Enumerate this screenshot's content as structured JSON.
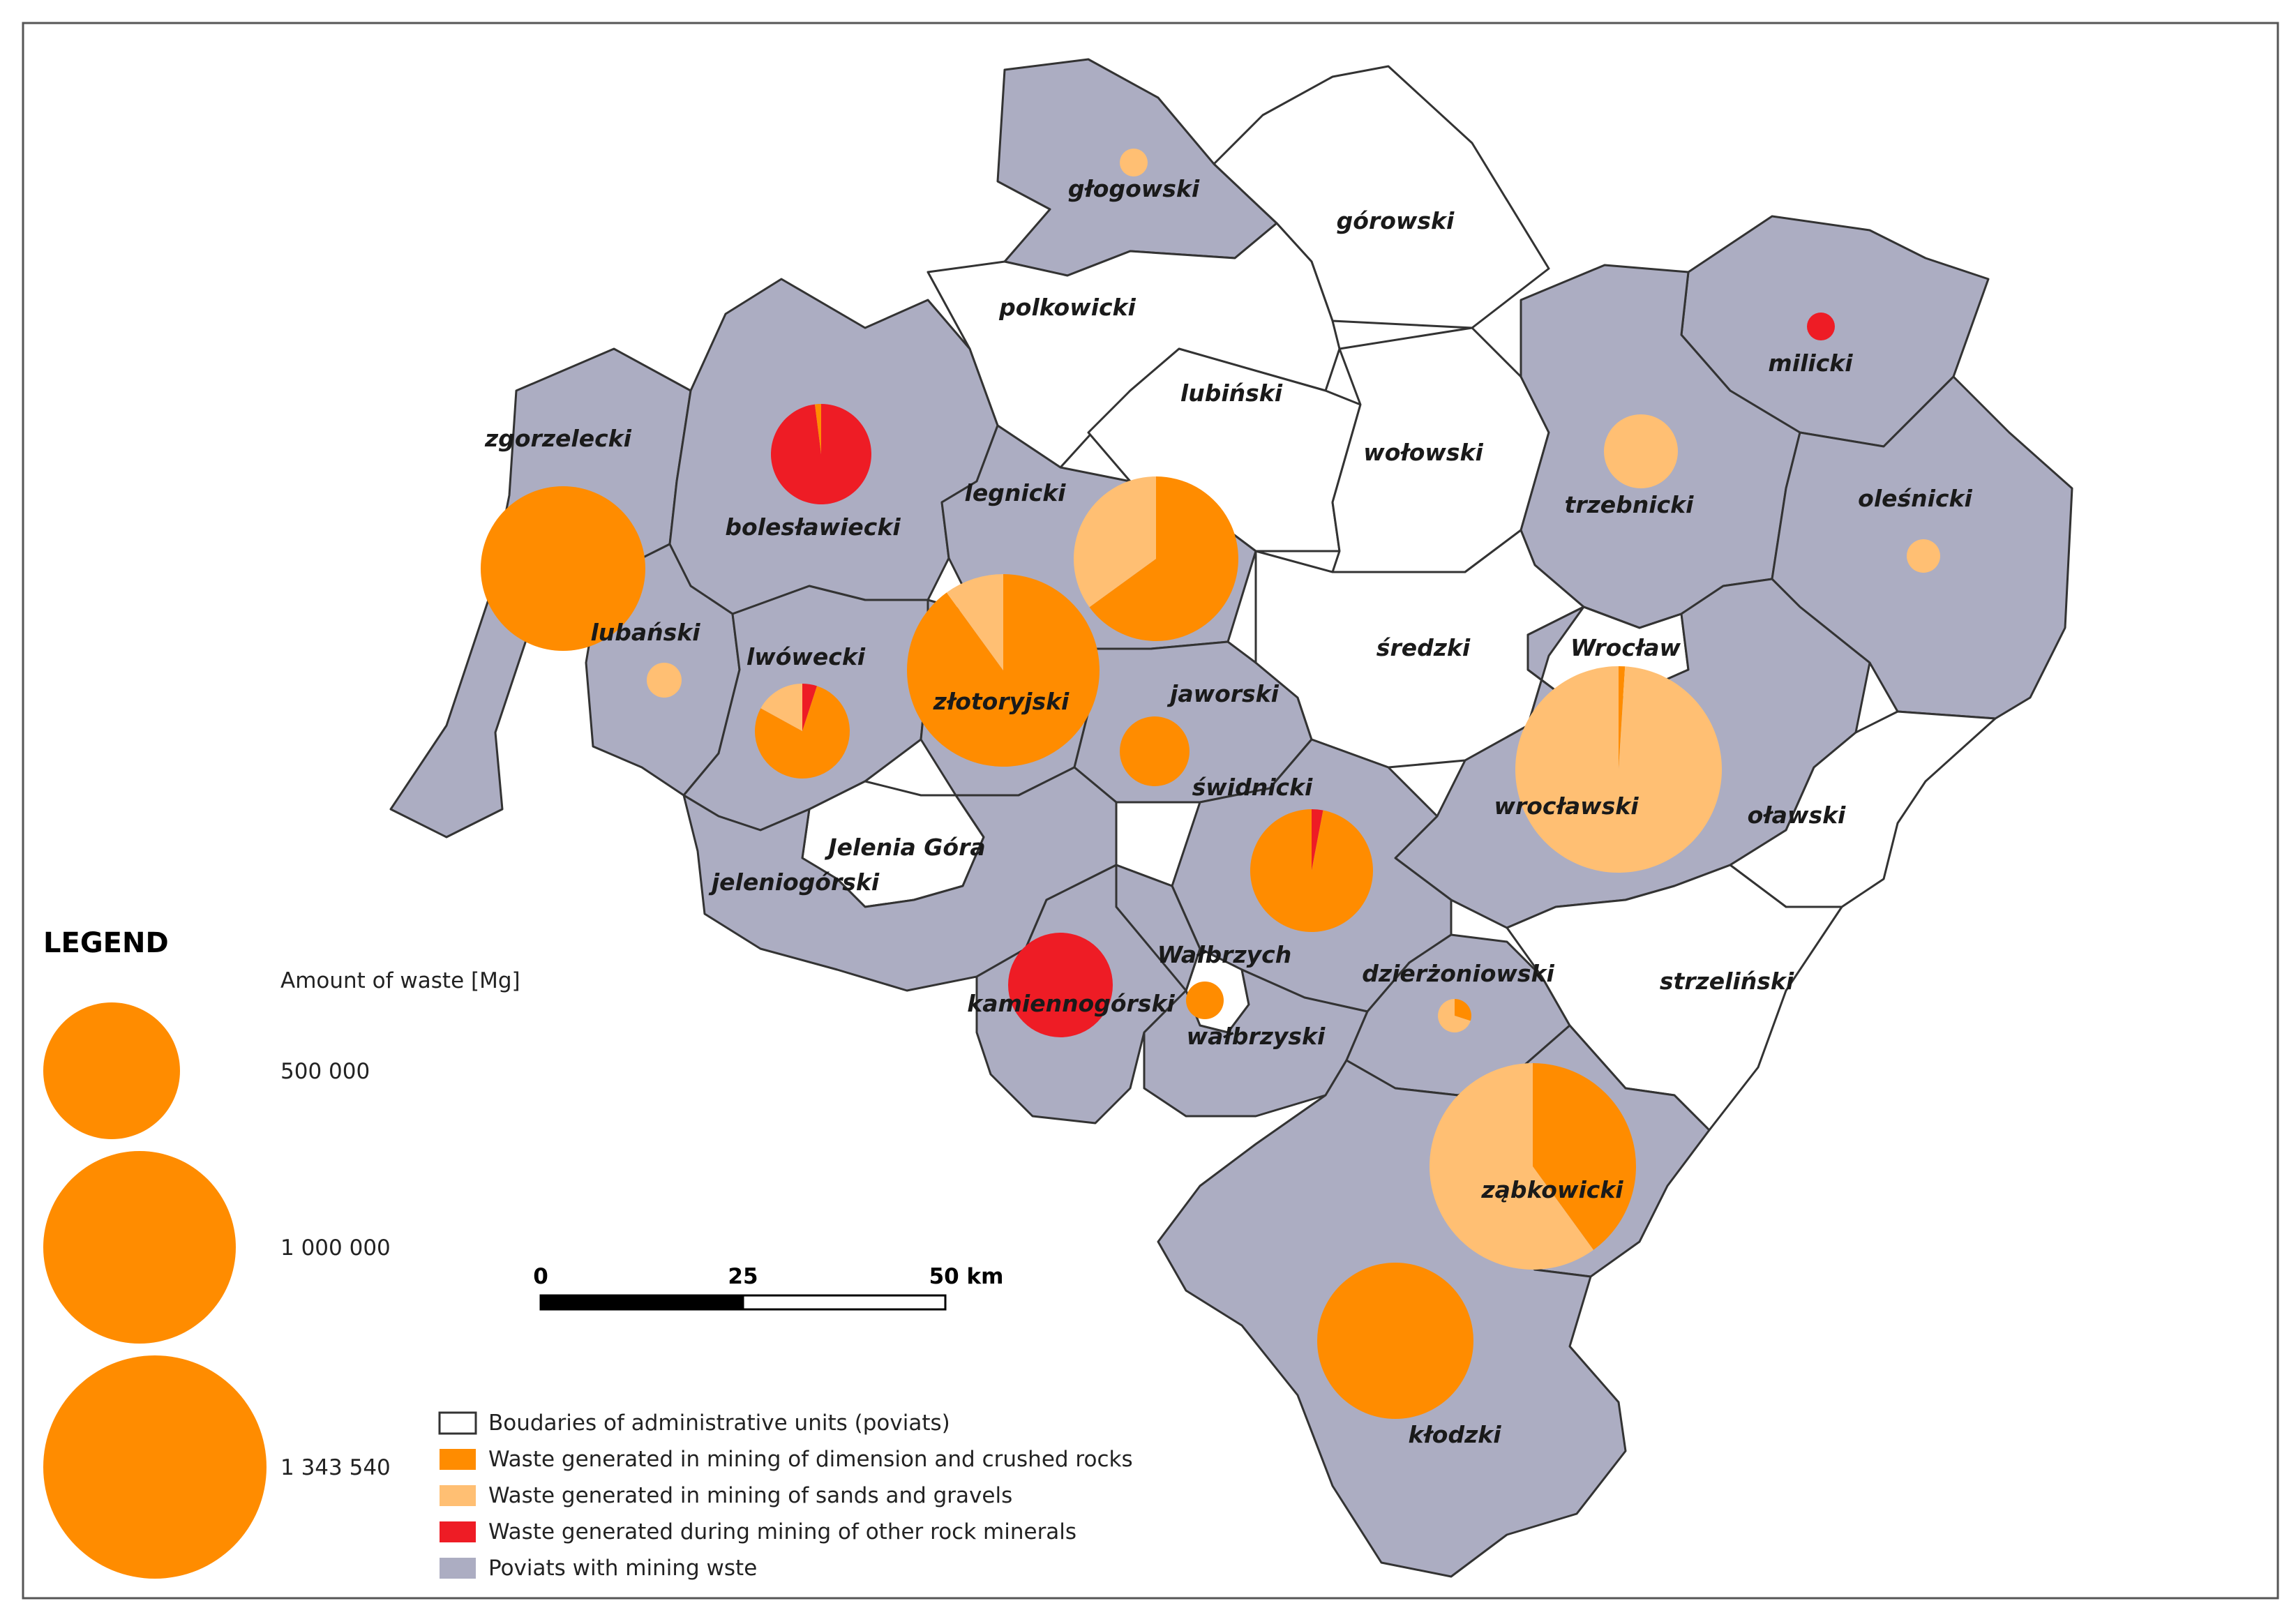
{
  "colors": {
    "crushed_rocks": "#FF8C00",
    "sands_gravels": "#FFBF73",
    "other_minerals": "#EE1C25",
    "mining_poviat": "#ACADC2",
    "boundary": "#333333"
  },
  "poviats": [
    {
      "label": "głogowski",
      "mining": true
    },
    {
      "label": "górowski",
      "mining": false
    },
    {
      "label": "polkowicki",
      "mining": false
    },
    {
      "label": "lubiński",
      "mining": false
    },
    {
      "label": "wołowski",
      "mining": false
    },
    {
      "label": "milicki",
      "mining": true
    },
    {
      "label": "trzebnicki",
      "mining": true
    },
    {
      "label": "oleśnicki",
      "mining": true
    },
    {
      "label": "zgorzelecki",
      "mining": true
    },
    {
      "label": "bolesławiecki",
      "mining": true
    },
    {
      "label": "legnicki",
      "mining": true
    },
    {
      "label": "lubański",
      "mining": true
    },
    {
      "label": "lwówecki",
      "mining": true
    },
    {
      "label": "złotoryjski",
      "mining": true
    },
    {
      "label": "jaworski",
      "mining": true
    },
    {
      "label": "średzki",
      "mining": false
    },
    {
      "label": "Wrocław",
      "mining": false
    },
    {
      "label": "wrocławski",
      "mining": true
    },
    {
      "label": "oławski",
      "mining": false
    },
    {
      "label": "świdnicki",
      "mining": true
    },
    {
      "label": "Jelenia Góra",
      "mining": false
    },
    {
      "label": "jeleniogórski",
      "mining": true
    },
    {
      "label": "Wałbrzych",
      "mining": false
    },
    {
      "label": "kamiennogórski",
      "mining": true
    },
    {
      "label": "wałbrzyski",
      "mining": true
    },
    {
      "label": "dzierżoniowski",
      "mining": true
    },
    {
      "label": "strzeliński",
      "mining": false
    },
    {
      "label": "ząbkowicki",
      "mining": true
    },
    {
      "label": "kłodzki",
      "mining": true
    }
  ],
  "waste_pies": [
    {
      "poviat": "głogowski",
      "shares": {
        "crushed_rocks": 0,
        "sands_gravels": 1,
        "other_minerals": 0
      }
    },
    {
      "poviat": "milicki",
      "shares": {
        "crushed_rocks": 0,
        "sands_gravels": 0,
        "other_minerals": 1
      }
    },
    {
      "poviat": "trzebnicki",
      "shares": {
        "crushed_rocks": 0,
        "sands_gravels": 1,
        "other_minerals": 0
      }
    },
    {
      "poviat": "oleśnicki",
      "shares": {
        "crushed_rocks": 0,
        "sands_gravels": 1,
        "other_minerals": 0
      }
    },
    {
      "poviat": "bolesławiecki",
      "shares": {
        "crushed_rocks": 0.02,
        "sands_gravels": 0,
        "other_minerals": 0.98
      }
    },
    {
      "poviat": "zgorzelecki",
      "shares": {
        "crushed_rocks": 1,
        "sands_gravels": 0,
        "other_minerals": 0
      }
    },
    {
      "poviat": "legnicki",
      "shares": {
        "crushed_rocks": 0.65,
        "sands_gravels": 0.35,
        "other_minerals": 0
      }
    },
    {
      "poviat": "lubański",
      "shares": {
        "crushed_rocks": 0,
        "sands_gravels": 1,
        "other_minerals": 0
      }
    },
    {
      "poviat": "lwówecki",
      "shares": {
        "crushed_rocks": 0.78,
        "sands_gravels": 0.17,
        "other_minerals": 0.05
      }
    },
    {
      "poviat": "złotoryjski",
      "shares": {
        "crushed_rocks": 0.9,
        "sands_gravels": 0.1,
        "other_minerals": 0
      }
    },
    {
      "poviat": "jaworski",
      "shares": {
        "crushed_rocks": 1,
        "sands_gravels": 0,
        "other_minerals": 0
      }
    },
    {
      "poviat": "wrocławski",
      "shares": {
        "crushed_rocks": 0.01,
        "sands_gravels": 0.99,
        "other_minerals": 0
      }
    },
    {
      "poviat": "świdnicki",
      "shares": {
        "crushed_rocks": 0.97,
        "sands_gravels": 0,
        "other_minerals": 0.03
      }
    },
    {
      "poviat": "kamiennogórski",
      "shares": {
        "crushed_rocks": 0,
        "sands_gravels": 0,
        "other_minerals": 1
      }
    },
    {
      "poviat": "wałbrzyski",
      "shares": {
        "crushed_rocks": 1,
        "sands_gravels": 0,
        "other_minerals": 0
      }
    },
    {
      "poviat": "dzierżoniowski",
      "shares": {
        "crushed_rocks": 0.3,
        "sands_gravels": 0.7,
        "other_minerals": 0
      }
    },
    {
      "poviat": "ząbkowicki",
      "shares": {
        "crushed_rocks": 0.4,
        "sands_gravels": 0.6,
        "other_minerals": 0
      }
    },
    {
      "poviat": "kłodzki",
      "shares": {
        "crushed_rocks": 1,
        "sands_gravels": 0,
        "other_minerals": 0
      }
    }
  ],
  "legend": {
    "title": "LEGEND",
    "amount_heading": "Amount of waste [Mg]",
    "size_classes": [
      {
        "value": 500000,
        "label": "500 000"
      },
      {
        "value": 1000000,
        "label": "1 000 000"
      },
      {
        "value": 1343540,
        "label": "1 343 540"
      }
    ],
    "items": [
      {
        "key": "boundary",
        "label": "Boudaries of administrative units (poviats)"
      },
      {
        "key": "crushed_rocks",
        "label": "Waste generated in mining of dimension and crushed rocks"
      },
      {
        "key": "sands_gravels",
        "label": "Waste generated in mining of sands and gravels"
      },
      {
        "key": "other_minerals",
        "label": "Waste generated during mining of other rock minerals"
      },
      {
        "key": "mining_poviat",
        "label": "Poviats with mining wste"
      }
    ]
  },
  "scale_bar": {
    "ticks": [
      "0",
      "25",
      "50 km"
    ]
  }
}
